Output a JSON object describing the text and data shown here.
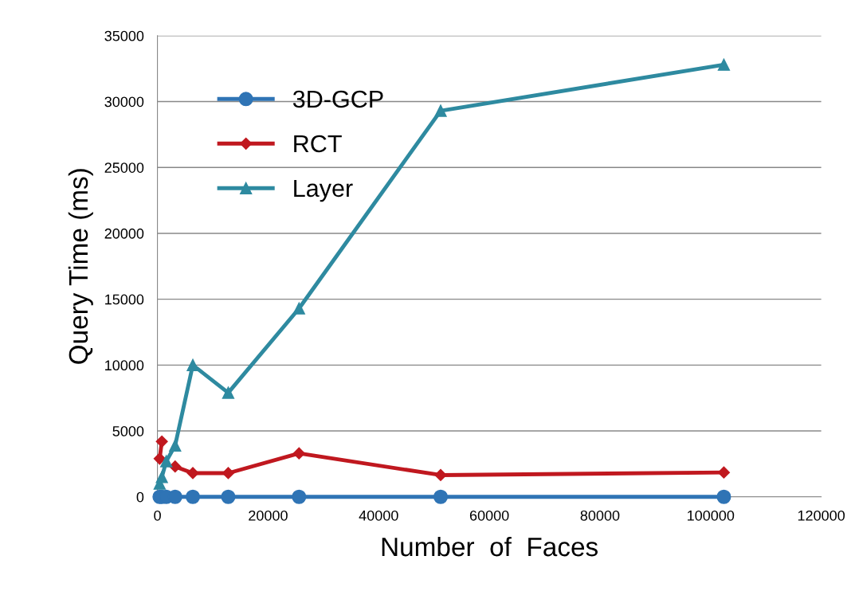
{
  "chart_data": {
    "type": "line",
    "xlabel": "Number  of  Faces",
    "ylabel": "Query Time (ms)",
    "x": [
      400,
      800,
      1600,
      3200,
      6400,
      12800,
      25600,
      51200,
      102400
    ],
    "series": [
      {
        "name": "3D-GCP",
        "color": "#2f74b5",
        "marker": "circle",
        "values": [
          0,
          0,
          0,
          0,
          0,
          0,
          0,
          0,
          0
        ]
      },
      {
        "name": "RCT",
        "color": "#c0181f",
        "marker": "diamond",
        "values": [
          2900,
          4200,
          null,
          2300,
          1800,
          1800,
          3300,
          1650,
          1850
        ]
      },
      {
        "name": "Layer",
        "color": "#2e8aa0",
        "marker": "triangle",
        "values": [
          1000,
          1500,
          2700,
          3900,
          10000,
          7900,
          14300,
          29300,
          32800
        ]
      }
    ],
    "xlim": [
      0,
      120000
    ],
    "xticks": [
      0,
      20000,
      40000,
      60000,
      80000,
      100000,
      120000
    ],
    "ylim": [
      0,
      35000
    ],
    "yticks": [
      0,
      5000,
      10000,
      15000,
      20000,
      25000,
      30000,
      35000
    ],
    "grid": "y",
    "legend": "top left"
  }
}
